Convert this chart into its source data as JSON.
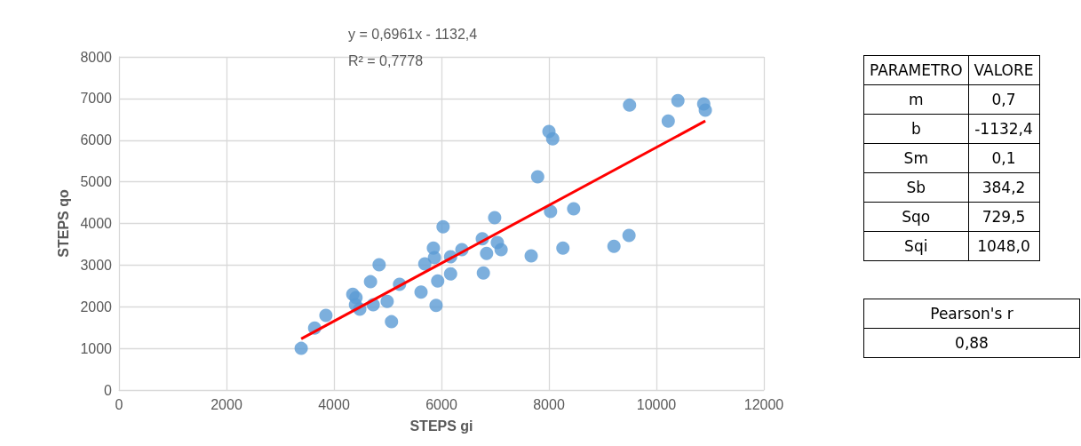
{
  "chart_data": [
    {
      "type": "scatter",
      "xlabel": "STEPS gi",
      "ylabel": "STEPS qo",
      "annotations": [
        "y = 0,6961x - 1132,4",
        "R² = 0,7778"
      ],
      "xlim": [
        0,
        12000
      ],
      "xticks": [
        0,
        2000,
        4000,
        6000,
        8000,
        10000,
        12000
      ],
      "ylim": [
        0,
        8000
      ],
      "yticks": [
        0,
        1000,
        2000,
        3000,
        4000,
        5000,
        6000,
        7000,
        8000
      ],
      "grid": true,
      "marker": "circle",
      "series": [
        {
          "color": "#5b9bd5",
          "x": [
            3390,
            3640,
            3850,
            4350,
            4410,
            4400,
            4480,
            4680,
            4730,
            4840,
            4990,
            5070,
            5220,
            5620,
            5690,
            5850,
            5870,
            5900,
            5930,
            6030,
            6170,
            6170,
            6380,
            6760,
            6780,
            6840,
            6990,
            7040,
            7110,
            7670,
            7790,
            8000,
            8030,
            8070,
            8260,
            8460,
            9210,
            9490,
            9500,
            10220,
            10400,
            10880,
            10910
          ],
          "values": [
            1000,
            1490,
            1790,
            2300,
            2220,
            2050,
            1940,
            2600,
            2050,
            3010,
            2130,
            1640,
            2540,
            2350,
            3030,
            3410,
            3180,
            2030,
            2620,
            3920,
            3200,
            2790,
            3370,
            3630,
            2810,
            3280,
            4140,
            3540,
            3370,
            3220,
            5120,
            6210,
            4290,
            6030,
            3410,
            4350,
            3450,
            3710,
            6840,
            6460,
            6950,
            6870,
            6720
          ]
        },
        {
          "type": "line",
          "color": "#ff0000",
          "marker": "none",
          "x": [
            3390,
            10910
          ],
          "values": [
            1230,
            6460
          ]
        }
      ]
    },
    {
      "type": "other",
      "annotations": [
        "PARAMETRO",
        "VALORE"
      ],
      "categories": [
        "m",
        "b",
        "Sm",
        "Sb",
        "Sqo",
        "Sqi"
      ],
      "value_labels": [
        "0,7",
        "-1132,4",
        "0,1",
        "384,2",
        "729,5",
        "1048,0"
      ]
    },
    {
      "type": "other",
      "categories": [
        "Pearson's r"
      ],
      "value_labels": [
        "0,88"
      ]
    }
  ]
}
